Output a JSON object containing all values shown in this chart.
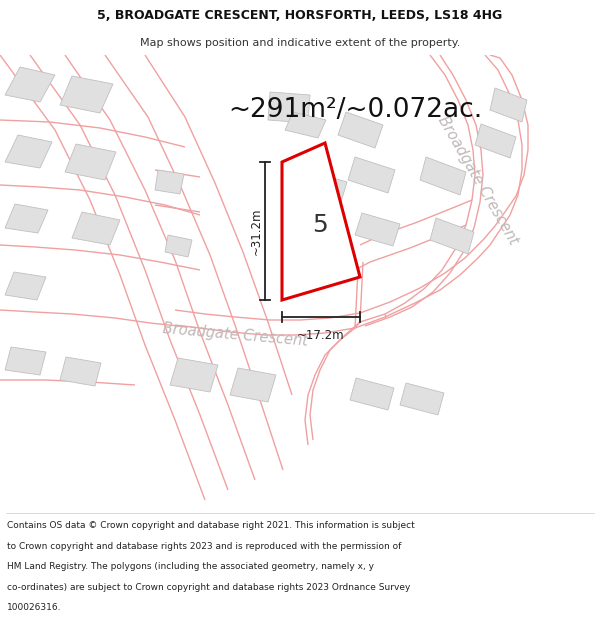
{
  "title_line1": "5, BROADGATE CRESCENT, HORSFORTH, LEEDS, LS18 4HG",
  "title_line2": "Map shows position and indicative extent of the property.",
  "area_text": "~291m²/~0.072ac.",
  "dim_height": "~31.2m",
  "dim_width": "~17.2m",
  "property_number": "5",
  "road_name": "Broadgate Crescent",
  "road_name2": "Broadgate Crescent",
  "footer_lines": [
    "Contains OS data © Crown copyright and database right 2021. This information is subject",
    "to Crown copyright and database rights 2023 and is reproduced with the permission of",
    "HM Land Registry. The polygons (including the associated geometry, namely x, y",
    "co-ordinates) are subject to Crown copyright and database rights 2023 Ordnance Survey",
    "100026316."
  ],
  "bg_color": "#ffffff",
  "road_line_color": "#f0a0a0",
  "road_fill_color": "#f5e0e0",
  "building_face_color": "#e0e0e0",
  "building_edge_color": "#c8c8c8",
  "property_edge_color": "#dd0000",
  "property_fill": "#ffffff",
  "dim_color": "#222222",
  "road_label_color": "#c0b8b8",
  "title_fontsize": 9.0,
  "subtitle_fontsize": 8.0,
  "area_fontsize": 19,
  "num_fontsize": 18,
  "dim_fontsize": 8.5,
  "road_label_fontsize": 10.5,
  "footer_fontsize": 6.5
}
